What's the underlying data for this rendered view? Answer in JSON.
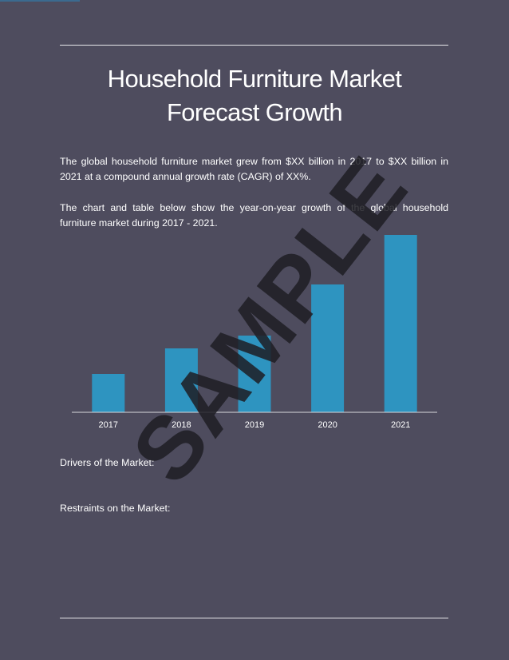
{
  "page": {
    "title_line1": "Household Furniture Market",
    "title_line2": "Forecast Growth",
    "paragraph1": "The global household furniture market grew from $XX billion in 2017 to $XX billion in 2021 at a compound annual growth rate (CAGR) of XX%.",
    "paragraph2": "The chart and table below show the year-on-year growth of the global household furniture market during 2017 - 2021.",
    "drivers_heading": "Drivers of the Market:",
    "restraints_heading": "Restraints on the Market:",
    "watermark": "SAMPLE",
    "background_color": "#4e4c5e",
    "bar_color": "#2e94c0"
  },
  "chart_data": {
    "type": "bar",
    "categories": [
      "2017",
      "2018",
      "2019",
      "2020",
      "2021"
    ],
    "values": [
      48,
      80,
      96,
      160,
      222
    ],
    "title": "",
    "xlabel": "",
    "ylabel": "",
    "ylim": [
      0,
      222
    ],
    "grid": false,
    "legend": "none"
  }
}
